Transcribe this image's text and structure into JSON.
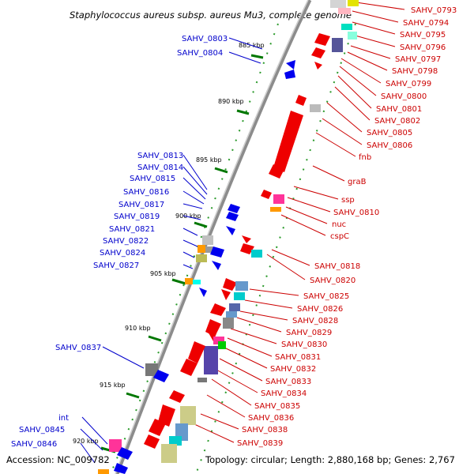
{
  "title": "Staphylococcus aureus subsp. aureus Mu3, complete genome",
  "accession_text": "Accession: NC_009782",
  "summary_text": "Topology: circular; Length: 2,880,168 bp; Genes: 2,767",
  "colors": {
    "forward_label": "#cc0000",
    "reverse_label": "#0000cc",
    "backbone": "#8c8c8c",
    "tick": "#007700"
  },
  "ticks": [
    {
      "label": "885 kbp",
      "value_kbp": 885
    },
    {
      "label": "890 kbp",
      "value_kbp": 890
    },
    {
      "label": "895 kbp",
      "value_kbp": 895
    },
    {
      "label": "900 kbp",
      "value_kbp": 900
    },
    {
      "label": "905 kbp",
      "value_kbp": 905
    },
    {
      "label": "910 kbp",
      "value_kbp": 910
    },
    {
      "label": "915 kbp",
      "value_kbp": 915
    },
    {
      "label": "920 kbp",
      "value_kbp": 920
    }
  ],
  "reverse_genes": [
    "SAHV_0803",
    "SAHV_0804",
    "SAHV_0813",
    "SAHV_0814",
    "SAHV_0815",
    "SAHV_0816",
    "SAHV_0817",
    "SAHV_0819",
    "SAHV_0821",
    "SAHV_0822",
    "SAHV_0824",
    "SAHV_0827",
    "SAHV_0837",
    "int",
    "SAHV_0845",
    "SAHV_0846"
  ],
  "forward_genes": [
    "SAHV_0793",
    "SAHV_0794",
    "SAHV_0795",
    "SAHV_0796",
    "SAHV_0797",
    "SAHV_0798",
    "SAHV_0799",
    "SAHV_0800",
    "SAHV_0801",
    "SAHV_0802",
    "SAHV_0805",
    "SAHV_0806",
    "fnb",
    "graB",
    "ssp",
    "SAHV_0810",
    "nuc",
    "cspC",
    "SAHV_0818",
    "SAHV_0820",
    "SAHV_0825",
    "SAHV_0826",
    "SAHV_0828",
    "SAHV_0829",
    "SAHV_0830",
    "SAHV_0831",
    "SAHV_0832",
    "SAHV_0833",
    "SAHV_0834",
    "SAHV_0835",
    "SAHV_0836",
    "SAHV_0838",
    "SAHV_0839"
  ]
}
